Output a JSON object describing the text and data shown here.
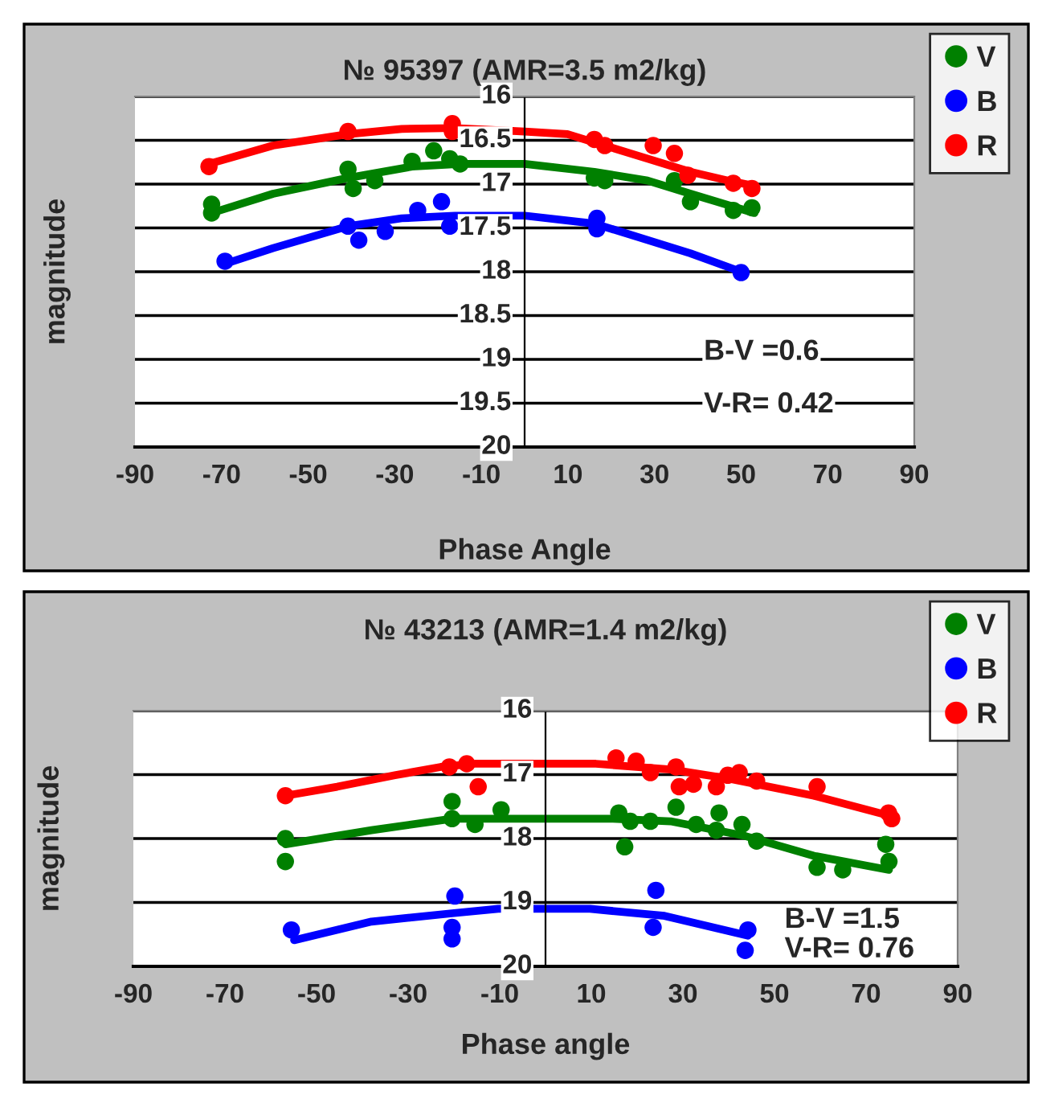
{
  "chart_data": [
    {
      "type": "scatter",
      "title": "№ 95397 (AMR=3.5 m2/kg)",
      "xlabel": "Phase Angle",
      "ylabel": "magnitude",
      "xlim": [
        -90,
        90
      ],
      "xticks": [
        -90,
        -70,
        -50,
        -30,
        -10,
        10,
        30,
        50,
        70,
        90
      ],
      "ylim": [
        20,
        16
      ],
      "yticks": [
        16,
        16.5,
        17,
        17.5,
        18,
        18.5,
        19,
        19.5,
        20
      ],
      "grid": "y",
      "legend": "top right",
      "marker": "circle",
      "annotations": [
        "B-V =0.6",
        "V-R= 0.42"
      ],
      "series": [
        {
          "name": "V",
          "color": "#008000",
          "x": [
            -72.3,
            -72.3,
            -40.8,
            -39.6,
            -34.6,
            -26,
            -21,
            -17.3,
            -14.9,
            16.1,
            18.5,
            34.6,
            38.3,
            48.2,
            52.5
          ],
          "values": [
            17.23,
            17.33,
            16.83,
            17.05,
            16.96,
            16.74,
            16.62,
            16.71,
            16.77,
            16.93,
            16.96,
            16.96,
            17.2,
            17.3,
            17.27
          ]
        },
        {
          "name": "B",
          "color": "#0000ff",
          "x": [
            -69.2,
            -40.8,
            -38.3,
            -32.2,
            -24.7,
            -19.2,
            -17.3,
            16.7,
            16.7,
            50
          ],
          "values": [
            17.88,
            17.48,
            17.64,
            17.54,
            17.3,
            17.2,
            17.48,
            17.39,
            17.51,
            18.01
          ]
        },
        {
          "name": "R",
          "color": "#ff0000",
          "x": [
            -72.9,
            -40.8,
            -16.7,
            -16.7,
            16.1,
            18.5,
            29.7,
            34.6,
            37.7,
            48.2,
            52.5
          ],
          "values": [
            16.8,
            16.4,
            16.31,
            16.4,
            16.49,
            16.56,
            16.56,
            16.65,
            16.9,
            16.99,
            17.05
          ]
        },
        {
          "type": "line",
          "marker": "none",
          "color": "#008000",
          "x": [
            -72.3,
            -58.1,
            -40.8,
            -26,
            -14.9,
            0,
            16.1,
            28.4,
            38.3,
            53.1
          ],
          "values": [
            17.33,
            17.11,
            16.93,
            16.8,
            16.77,
            16.77,
            16.86,
            16.96,
            17.11,
            17.33
          ]
        },
        {
          "type": "line",
          "marker": "none",
          "color": "#0000ff",
          "x": [
            -69.2,
            -58.1,
            -40.8,
            -28.4,
            -16.1,
            0,
            16.1,
            25.9,
            38.3,
            50
          ],
          "values": [
            17.91,
            17.73,
            17.48,
            17.39,
            17.36,
            17.36,
            17.45,
            17.6,
            17.79,
            18.0
          ]
        },
        {
          "type": "line",
          "marker": "none",
          "color": "#ff0000",
          "x": [
            -72.9,
            -58.1,
            -40.8,
            -28.4,
            -16.1,
            0,
            9.9,
            18.5,
            28.4,
            38.3,
            47,
            53.1
          ],
          "values": [
            16.77,
            16.56,
            16.43,
            16.37,
            16.36,
            16.4,
            16.43,
            16.56,
            16.71,
            16.86,
            16.96,
            17.02
          ]
        }
      ]
    },
    {
      "type": "scatter",
      "title": "№ 43213 (AMR=1.4 m2/kg)",
      "xlabel": "Phase angle",
      "ylabel": "magnitude",
      "xlim": [
        -90,
        90
      ],
      "xticks": [
        -90,
        -70,
        -50,
        -30,
        -10,
        10,
        30,
        50,
        70,
        90
      ],
      "ylim": [
        20,
        16
      ],
      "yticks": [
        16,
        17,
        18,
        19,
        20
      ],
      "grid": "y",
      "legend": "top right",
      "marker": "circle",
      "annotations": [
        "B-V =1.5",
        "V-R= 0.76"
      ],
      "series": [
        {
          "name": "V",
          "color": "#008000",
          "x": [
            -56.8,
            -56.8,
            -20.4,
            -20.4,
            -15.4,
            -9.7,
            16,
            17.3,
            18.5,
            22.9,
            28.5,
            32.9,
            37.9,
            37.3,
            42.9,
            46.1,
            59.3,
            64.9,
            74.3,
            75
          ],
          "values": [
            18.0,
            18.36,
            17.42,
            17.69,
            17.78,
            17.55,
            17.6,
            18.13,
            17.73,
            17.73,
            17.51,
            17.78,
            17.6,
            17.87,
            17.78,
            18.04,
            18.45,
            18.49,
            18.09,
            18.36
          ]
        },
        {
          "name": "B",
          "color": "#0000ff",
          "x": [
            -55.5,
            -19.8,
            -20.4,
            -20.4,
            24.1,
            23.5,
            44.2,
            43.6
          ],
          "values": [
            19.43,
            18.9,
            19.39,
            19.57,
            18.81,
            19.39,
            19.43,
            19.75
          ]
        },
        {
          "name": "R",
          "color": "#ff0000",
          "x": [
            -56.8,
            -21,
            -17.2,
            -14.7,
            15.4,
            19.8,
            22.9,
            28.5,
            29.2,
            32.3,
            37.3,
            39.8,
            42.3,
            46.1,
            59.3,
            74.9,
            75.6
          ],
          "values": [
            17.33,
            16.88,
            16.83,
            17.19,
            16.74,
            16.79,
            16.97,
            16.88,
            17.19,
            17.15,
            17.19,
            17.01,
            16.97,
            17.1,
            17.19,
            17.6,
            17.69
          ]
        },
        {
          "type": "line",
          "marker": "none",
          "color": "#008000",
          "x": [
            -56.8,
            -38,
            -20.4,
            -10.3,
            14.7,
            27.3,
            43.6,
            58.6,
            75
          ],
          "values": [
            18.09,
            17.87,
            17.69,
            17.69,
            17.69,
            17.73,
            17.96,
            18.27,
            18.49
          ]
        },
        {
          "type": "line",
          "marker": "none",
          "color": "#0000ff",
          "x": [
            -54.9,
            -38,
            -20.4,
            -10.3,
            9.7,
            26,
            44.2
          ],
          "values": [
            19.59,
            19.3,
            19.17,
            19.1,
            19.1,
            19.21,
            19.52
          ]
        },
        {
          "type": "line",
          "marker": "none",
          "color": "#ff0000",
          "x": [
            -56.8,
            -45.5,
            -32.9,
            -22.9,
            -15.4,
            11,
            27.3,
            39.8,
            58.6,
            75
          ],
          "values": [
            17.33,
            17.19,
            17.01,
            16.88,
            16.83,
            16.83,
            16.92,
            17.06,
            17.33,
            17.64
          ]
        }
      ]
    }
  ]
}
